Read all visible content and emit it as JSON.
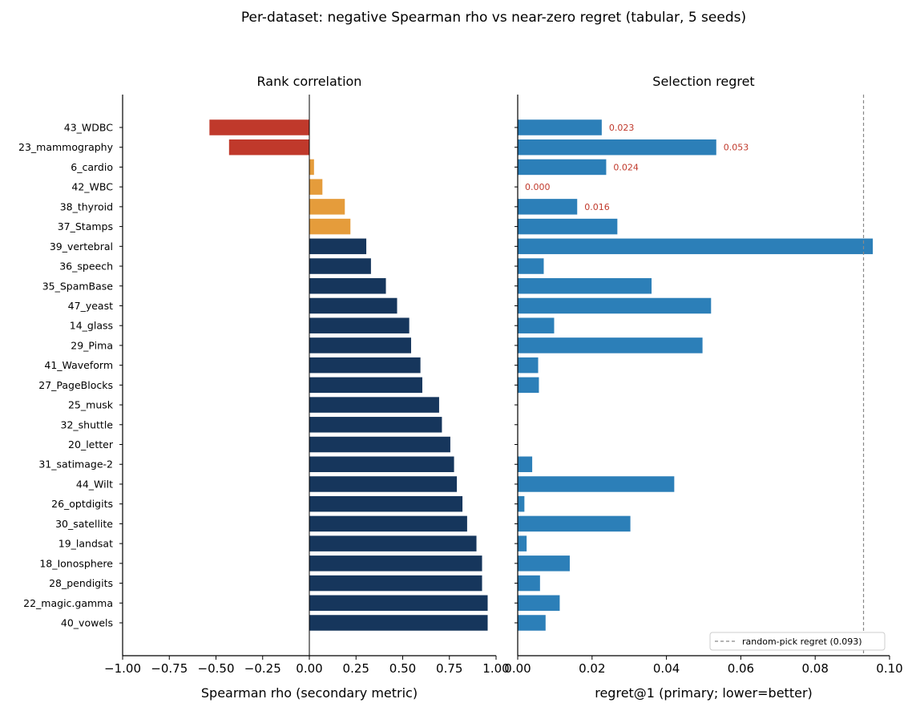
{
  "title": "Per-dataset: negative Spearman rho vs near-zero regret (tabular, 5 seeds)",
  "colors": {
    "negative": "#c0392b",
    "weak": "#e59c3b",
    "strong": "#16365c",
    "regret_bar": "#2c7fb8",
    "annotation": "#c0392b",
    "reference_line": "#888888"
  },
  "chart_data": [
    {
      "type": "bar",
      "orientation": "horizontal",
      "title": "Rank correlation",
      "xlabel": "Spearman rho (secondary metric)",
      "xlim": [
        -1.0,
        1.0
      ],
      "xticks": [
        -1.0,
        -0.75,
        -0.5,
        -0.25,
        0.0,
        0.25,
        0.5,
        0.75,
        1.0
      ],
      "xtick_labels": [
        "−1.00",
        "−0.75",
        "−0.50",
        "−0.25",
        "0.00",
        "0.25",
        "0.50",
        "0.75",
        "1.00"
      ],
      "categories": [
        "43_WDBC",
        "23_mammography",
        "6_cardio",
        "42_WBC",
        "38_thyroid",
        "37_Stamps",
        "39_vertebral",
        "36_speech",
        "35_SpamBase",
        "47_yeast",
        "14_glass",
        "29_Pima",
        "41_Waveform",
        "27_PageBlocks",
        "25_musk",
        "32_shuttle",
        "20_letter",
        "31_satimage-2",
        "44_Wilt",
        "26_optdigits",
        "30_satellite",
        "19_landsat",
        "18_Ionosphere",
        "28_pendigits",
        "22_magic.gamma",
        "40_vowels"
      ],
      "values": [
        -0.535,
        -0.43,
        0.025,
        0.07,
        0.19,
        0.22,
        0.305,
        0.33,
        0.41,
        0.47,
        0.535,
        0.545,
        0.595,
        0.605,
        0.695,
        0.71,
        0.755,
        0.775,
        0.79,
        0.82,
        0.845,
        0.895,
        0.925,
        0.925,
        0.955,
        0.955
      ],
      "grid": false
    },
    {
      "type": "bar",
      "orientation": "horizontal",
      "title": "Selection regret",
      "xlabel": "regret@1  (primary; lower=better)",
      "xlim": [
        0.0,
        0.1
      ],
      "xticks": [
        0.0,
        0.02,
        0.04,
        0.06,
        0.08,
        0.1
      ],
      "xtick_labels": [
        "0.00",
        "0.02",
        "0.04",
        "0.06",
        "0.08",
        "0.10"
      ],
      "categories": [
        "43_WDBC",
        "23_mammography",
        "6_cardio",
        "42_WBC",
        "38_thyroid",
        "37_Stamps",
        "39_vertebral",
        "36_speech",
        "35_SpamBase",
        "47_yeast",
        "14_glass",
        "29_Pima",
        "41_Waveform",
        "27_PageBlocks",
        "25_musk",
        "32_shuttle",
        "20_letter",
        "31_satimage-2",
        "44_Wilt",
        "26_optdigits",
        "30_satellite",
        "19_landsat",
        "18_Ionosphere",
        "28_pendigits",
        "22_magic.gamma",
        "40_vowels"
      ],
      "values": [
        0.0226,
        0.0534,
        0.0238,
        0.0,
        0.016,
        0.0268,
        0.0955,
        0.007,
        0.036,
        0.052,
        0.0098,
        0.0497,
        0.0055,
        0.0057,
        0.0,
        0.0,
        0.0,
        0.0039,
        0.0421,
        0.0018,
        0.0303,
        0.0024,
        0.014,
        0.006,
        0.0113,
        0.0075
      ],
      "annotations": [
        {
          "category": "43_WDBC",
          "label": "0.023"
        },
        {
          "category": "23_mammography",
          "label": "0.053"
        },
        {
          "category": "6_cardio",
          "label": "0.024"
        },
        {
          "category": "42_WBC",
          "label": "0.000"
        },
        {
          "category": "38_thyroid",
          "label": "0.016"
        }
      ],
      "reference_line": {
        "value": 0.093,
        "label": "random-pick regret (0.093)"
      },
      "legend_position": "lower-right",
      "grid": false
    }
  ]
}
